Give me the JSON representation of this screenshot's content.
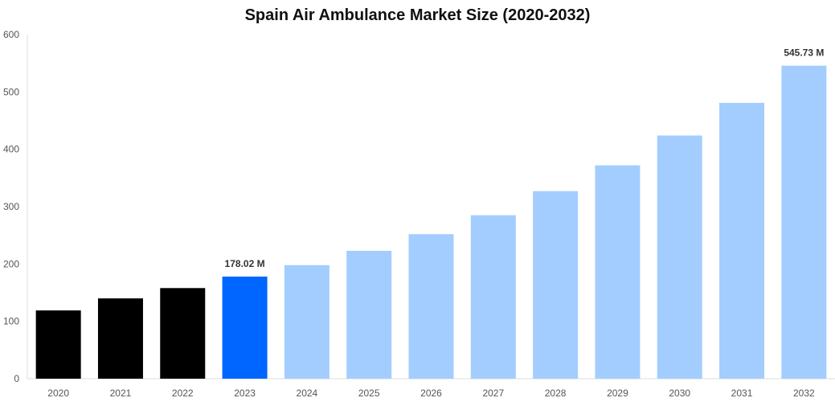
{
  "chart_data": {
    "type": "bar",
    "title": "Spain Air Ambulance Market Size (2020-2032)",
    "xlabel": "",
    "ylabel": "",
    "ylim": [
      0,
      600
    ],
    "yticks": [
      0,
      100,
      200,
      300,
      400,
      500,
      600
    ],
    "grid": false,
    "categories": [
      "2020",
      "2021",
      "2022",
      "2023",
      "2024",
      "2025",
      "2026",
      "2027",
      "2028",
      "2029",
      "2030",
      "2031",
      "2032"
    ],
    "values": [
      119,
      140,
      158,
      178.02,
      198,
      223,
      252,
      285,
      327,
      372,
      424,
      481,
      545.73
    ],
    "bar_colors": [
      "#000000",
      "#000000",
      "#000000",
      "#0066ff",
      "#a3cdff",
      "#a3cdff",
      "#a3cdff",
      "#a3cdff",
      "#a3cdff",
      "#a3cdff",
      "#a3cdff",
      "#a3cdff",
      "#a3cdff"
    ],
    "data_labels": {
      "3": "178.02 M",
      "12": "545.73 M"
    }
  }
}
